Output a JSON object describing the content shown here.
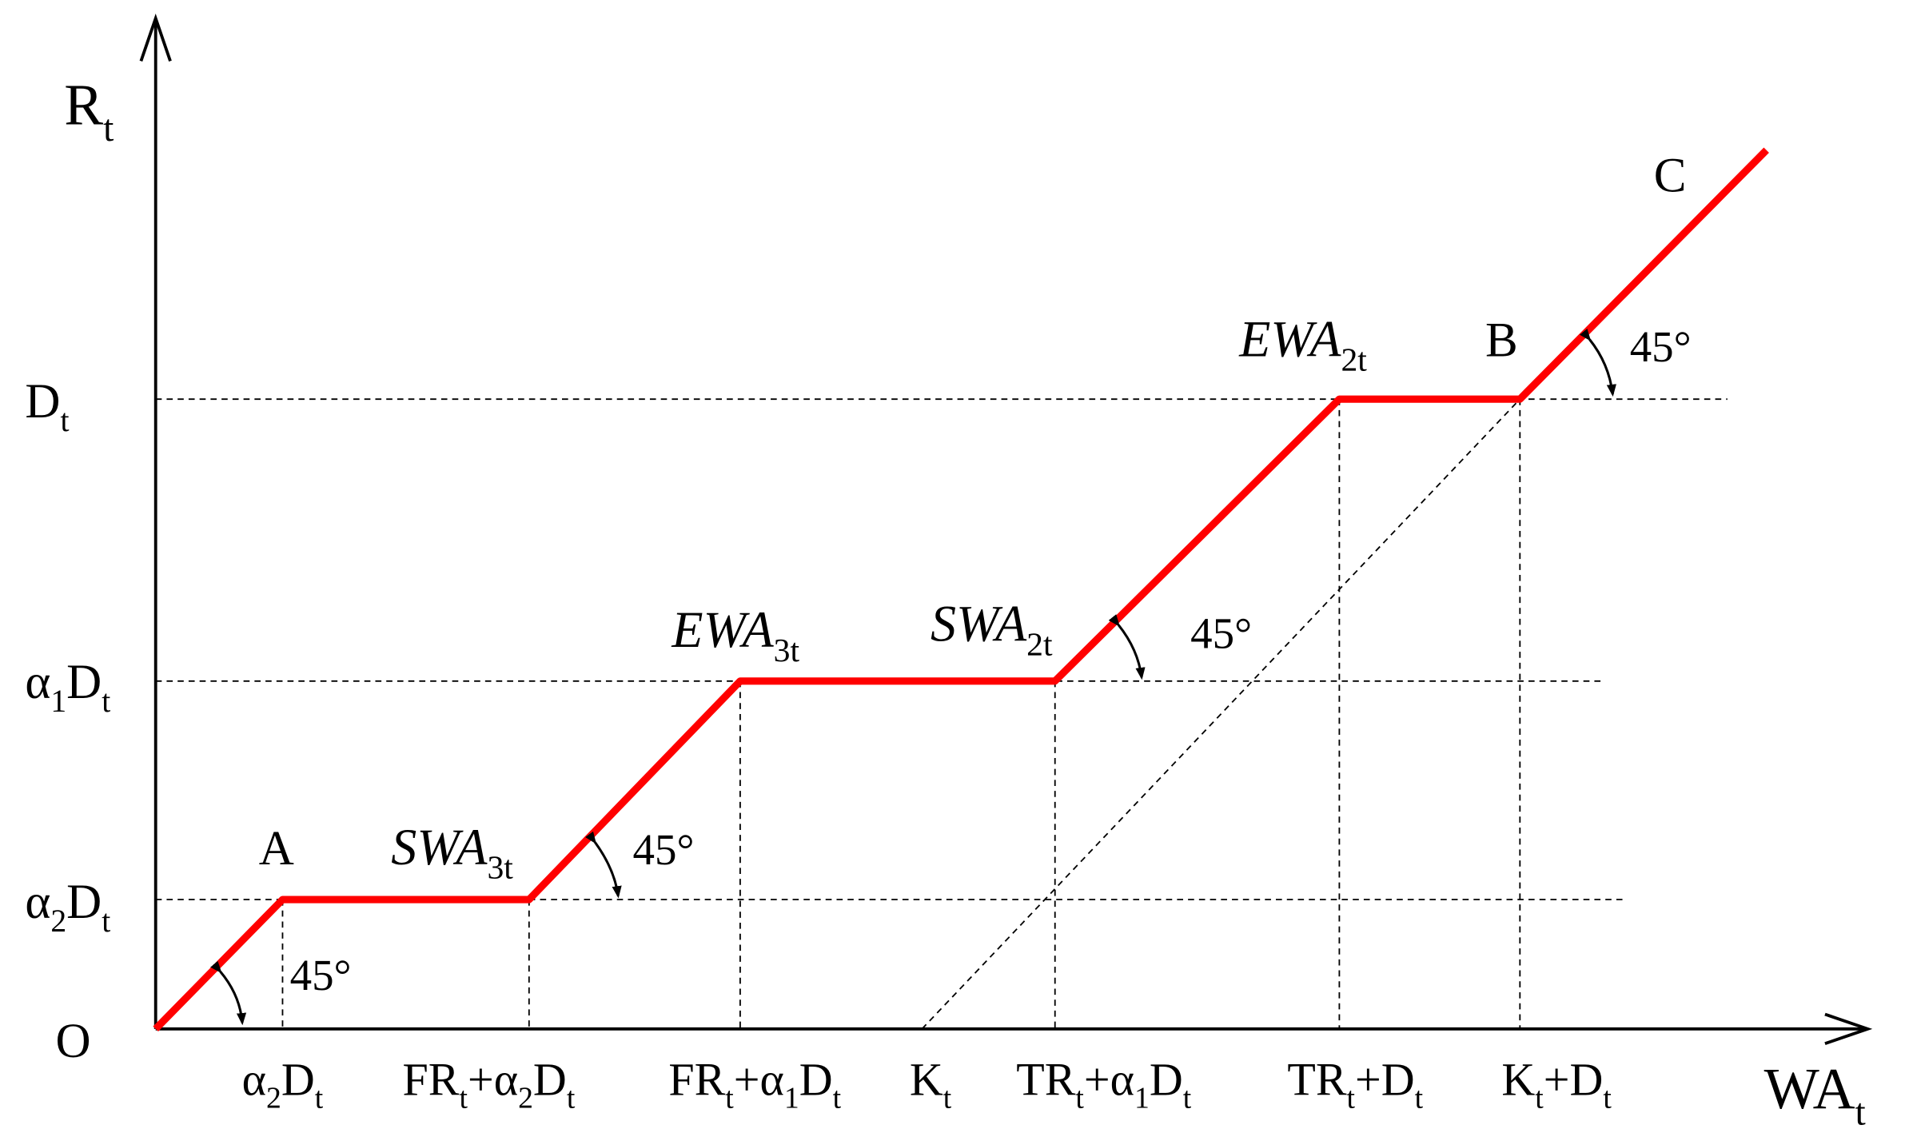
{
  "axes": {
    "y_label": [
      {
        "text": "R"
      },
      {
        "text": "t",
        "sub": true
      }
    ],
    "x_label": [
      {
        "text": "WA"
      },
      {
        "text": "t",
        "sub": true
      }
    ],
    "origin": [
      {
        "text": "O"
      }
    ]
  },
  "y_ticks": [
    [
      {
        "text": "D"
      },
      {
        "text": "t",
        "sub": true
      }
    ],
    [
      {
        "text": "α"
      },
      {
        "text": "1",
        "sub": true
      },
      {
        "text": "D"
      },
      {
        "text": "t",
        "sub": true
      }
    ],
    [
      {
        "text": "α"
      },
      {
        "text": "2",
        "sub": true
      },
      {
        "text": "D"
      },
      {
        "text": "t",
        "sub": true
      }
    ]
  ],
  "x_ticks": [
    [
      {
        "text": "α"
      },
      {
        "text": "2",
        "sub": true
      },
      {
        "text": "D"
      },
      {
        "text": "t",
        "sub": true
      }
    ],
    [
      {
        "text": "FR"
      },
      {
        "text": "t",
        "sub": true
      },
      {
        "text": "+α"
      },
      {
        "text": "2",
        "sub": true
      },
      {
        "text": "D"
      },
      {
        "text": "t",
        "sub": true
      }
    ],
    [
      {
        "text": "FR"
      },
      {
        "text": "t",
        "sub": true
      },
      {
        "text": "+α"
      },
      {
        "text": "1",
        "sub": true
      },
      {
        "text": "D"
      },
      {
        "text": "t",
        "sub": true
      }
    ],
    [
      {
        "text": "K"
      },
      {
        "text": "t",
        "sub": true
      }
    ],
    [
      {
        "text": "TR"
      },
      {
        "text": "t",
        "sub": true
      },
      {
        "text": "+α"
      },
      {
        "text": "1",
        "sub": true
      },
      {
        "text": "D"
      },
      {
        "text": "t",
        "sub": true
      }
    ],
    [
      {
        "text": "TR"
      },
      {
        "text": "t",
        "sub": true
      },
      {
        "text": "+D"
      },
      {
        "text": "t",
        "sub": true
      }
    ],
    [
      {
        "text": "K"
      },
      {
        "text": "t",
        "sub": true
      },
      {
        "text": "+D"
      },
      {
        "text": "t",
        "sub": true
      }
    ]
  ],
  "points": [
    [
      {
        "text": "A"
      }
    ],
    [
      {
        "text": "B"
      }
    ],
    [
      {
        "text": "C"
      }
    ]
  ],
  "segment_labels": [
    [
      {
        "text": "SWA"
      },
      {
        "text": "3t",
        "sub": true
      }
    ],
    [
      {
        "text": "EWA"
      },
      {
        "text": "3t",
        "sub": true
      }
    ],
    [
      {
        "text": "SWA"
      },
      {
        "text": "2t",
        "sub": true
      }
    ],
    [
      {
        "text": "EWA"
      },
      {
        "text": "2t",
        "sub": true
      }
    ]
  ],
  "angle_labels": [
    [
      {
        "text": "45°"
      }
    ],
    [
      {
        "text": "45°"
      }
    ],
    [
      {
        "text": "45°"
      }
    ],
    [
      {
        "text": "45°"
      }
    ]
  ]
}
